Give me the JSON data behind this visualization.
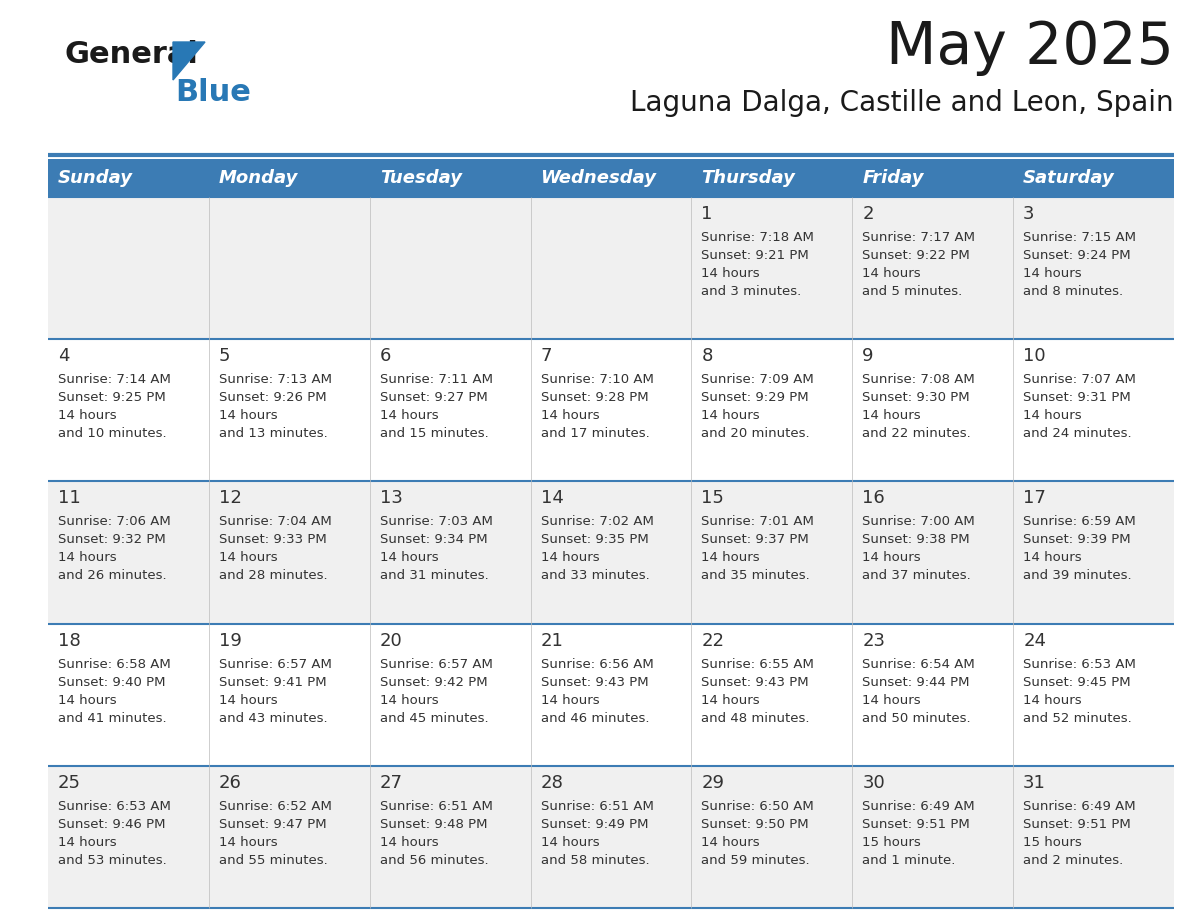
{
  "title": "May 2025",
  "subtitle": "Laguna Dalga, Castille and Leon, Spain",
  "days_of_week": [
    "Sunday",
    "Monday",
    "Tuesday",
    "Wednesday",
    "Thursday",
    "Friday",
    "Saturday"
  ],
  "header_bg": "#3C7CB4",
  "header_text_color": "#FFFFFF",
  "cell_bg_light": "#F0F0F0",
  "cell_bg_white": "#FFFFFF",
  "cell_text_color": "#333333",
  "line_color": "#3C7CB4",
  "title_color": "#1a1a1a",
  "logo_black": "#1a1a1a",
  "logo_blue": "#2878B5",
  "calendar_data": [
    [
      {
        "day": null,
        "sunrise": null,
        "sunset": null,
        "daylight": null
      },
      {
        "day": null,
        "sunrise": null,
        "sunset": null,
        "daylight": null
      },
      {
        "day": null,
        "sunrise": null,
        "sunset": null,
        "daylight": null
      },
      {
        "day": null,
        "sunrise": null,
        "sunset": null,
        "daylight": null
      },
      {
        "day": 1,
        "sunrise": "7:18 AM",
        "sunset": "9:21 PM",
        "daylight": "14 hours and 3 minutes."
      },
      {
        "day": 2,
        "sunrise": "7:17 AM",
        "sunset": "9:22 PM",
        "daylight": "14 hours and 5 minutes."
      },
      {
        "day": 3,
        "sunrise": "7:15 AM",
        "sunset": "9:24 PM",
        "daylight": "14 hours and 8 minutes."
      }
    ],
    [
      {
        "day": 4,
        "sunrise": "7:14 AM",
        "sunset": "9:25 PM",
        "daylight": "14 hours and 10 minutes."
      },
      {
        "day": 5,
        "sunrise": "7:13 AM",
        "sunset": "9:26 PM",
        "daylight": "14 hours and 13 minutes."
      },
      {
        "day": 6,
        "sunrise": "7:11 AM",
        "sunset": "9:27 PM",
        "daylight": "14 hours and 15 minutes."
      },
      {
        "day": 7,
        "sunrise": "7:10 AM",
        "sunset": "9:28 PM",
        "daylight": "14 hours and 17 minutes."
      },
      {
        "day": 8,
        "sunrise": "7:09 AM",
        "sunset": "9:29 PM",
        "daylight": "14 hours and 20 minutes."
      },
      {
        "day": 9,
        "sunrise": "7:08 AM",
        "sunset": "9:30 PM",
        "daylight": "14 hours and 22 minutes."
      },
      {
        "day": 10,
        "sunrise": "7:07 AM",
        "sunset": "9:31 PM",
        "daylight": "14 hours and 24 minutes."
      }
    ],
    [
      {
        "day": 11,
        "sunrise": "7:06 AM",
        "sunset": "9:32 PM",
        "daylight": "14 hours and 26 minutes."
      },
      {
        "day": 12,
        "sunrise": "7:04 AM",
        "sunset": "9:33 PM",
        "daylight": "14 hours and 28 minutes."
      },
      {
        "day": 13,
        "sunrise": "7:03 AM",
        "sunset": "9:34 PM",
        "daylight": "14 hours and 31 minutes."
      },
      {
        "day": 14,
        "sunrise": "7:02 AM",
        "sunset": "9:35 PM",
        "daylight": "14 hours and 33 minutes."
      },
      {
        "day": 15,
        "sunrise": "7:01 AM",
        "sunset": "9:37 PM",
        "daylight": "14 hours and 35 minutes."
      },
      {
        "day": 16,
        "sunrise": "7:00 AM",
        "sunset": "9:38 PM",
        "daylight": "14 hours and 37 minutes."
      },
      {
        "day": 17,
        "sunrise": "6:59 AM",
        "sunset": "9:39 PM",
        "daylight": "14 hours and 39 minutes."
      }
    ],
    [
      {
        "day": 18,
        "sunrise": "6:58 AM",
        "sunset": "9:40 PM",
        "daylight": "14 hours and 41 minutes."
      },
      {
        "day": 19,
        "sunrise": "6:57 AM",
        "sunset": "9:41 PM",
        "daylight": "14 hours and 43 minutes."
      },
      {
        "day": 20,
        "sunrise": "6:57 AM",
        "sunset": "9:42 PM",
        "daylight": "14 hours and 45 minutes."
      },
      {
        "day": 21,
        "sunrise": "6:56 AM",
        "sunset": "9:43 PM",
        "daylight": "14 hours and 46 minutes."
      },
      {
        "day": 22,
        "sunrise": "6:55 AM",
        "sunset": "9:43 PM",
        "daylight": "14 hours and 48 minutes."
      },
      {
        "day": 23,
        "sunrise": "6:54 AM",
        "sunset": "9:44 PM",
        "daylight": "14 hours and 50 minutes."
      },
      {
        "day": 24,
        "sunrise": "6:53 AM",
        "sunset": "9:45 PM",
        "daylight": "14 hours and 52 minutes."
      }
    ],
    [
      {
        "day": 25,
        "sunrise": "6:53 AM",
        "sunset": "9:46 PM",
        "daylight": "14 hours and 53 minutes."
      },
      {
        "day": 26,
        "sunrise": "6:52 AM",
        "sunset": "9:47 PM",
        "daylight": "14 hours and 55 minutes."
      },
      {
        "day": 27,
        "sunrise": "6:51 AM",
        "sunset": "9:48 PM",
        "daylight": "14 hours and 56 minutes."
      },
      {
        "day": 28,
        "sunrise": "6:51 AM",
        "sunset": "9:49 PM",
        "daylight": "14 hours and 58 minutes."
      },
      {
        "day": 29,
        "sunrise": "6:50 AM",
        "sunset": "9:50 PM",
        "daylight": "14 hours and 59 minutes."
      },
      {
        "day": 30,
        "sunrise": "6:49 AM",
        "sunset": "9:51 PM",
        "daylight": "15 hours and 1 minute."
      },
      {
        "day": 31,
        "sunrise": "6:49 AM",
        "sunset": "9:51 PM",
        "daylight": "15 hours and 2 minutes."
      }
    ]
  ]
}
